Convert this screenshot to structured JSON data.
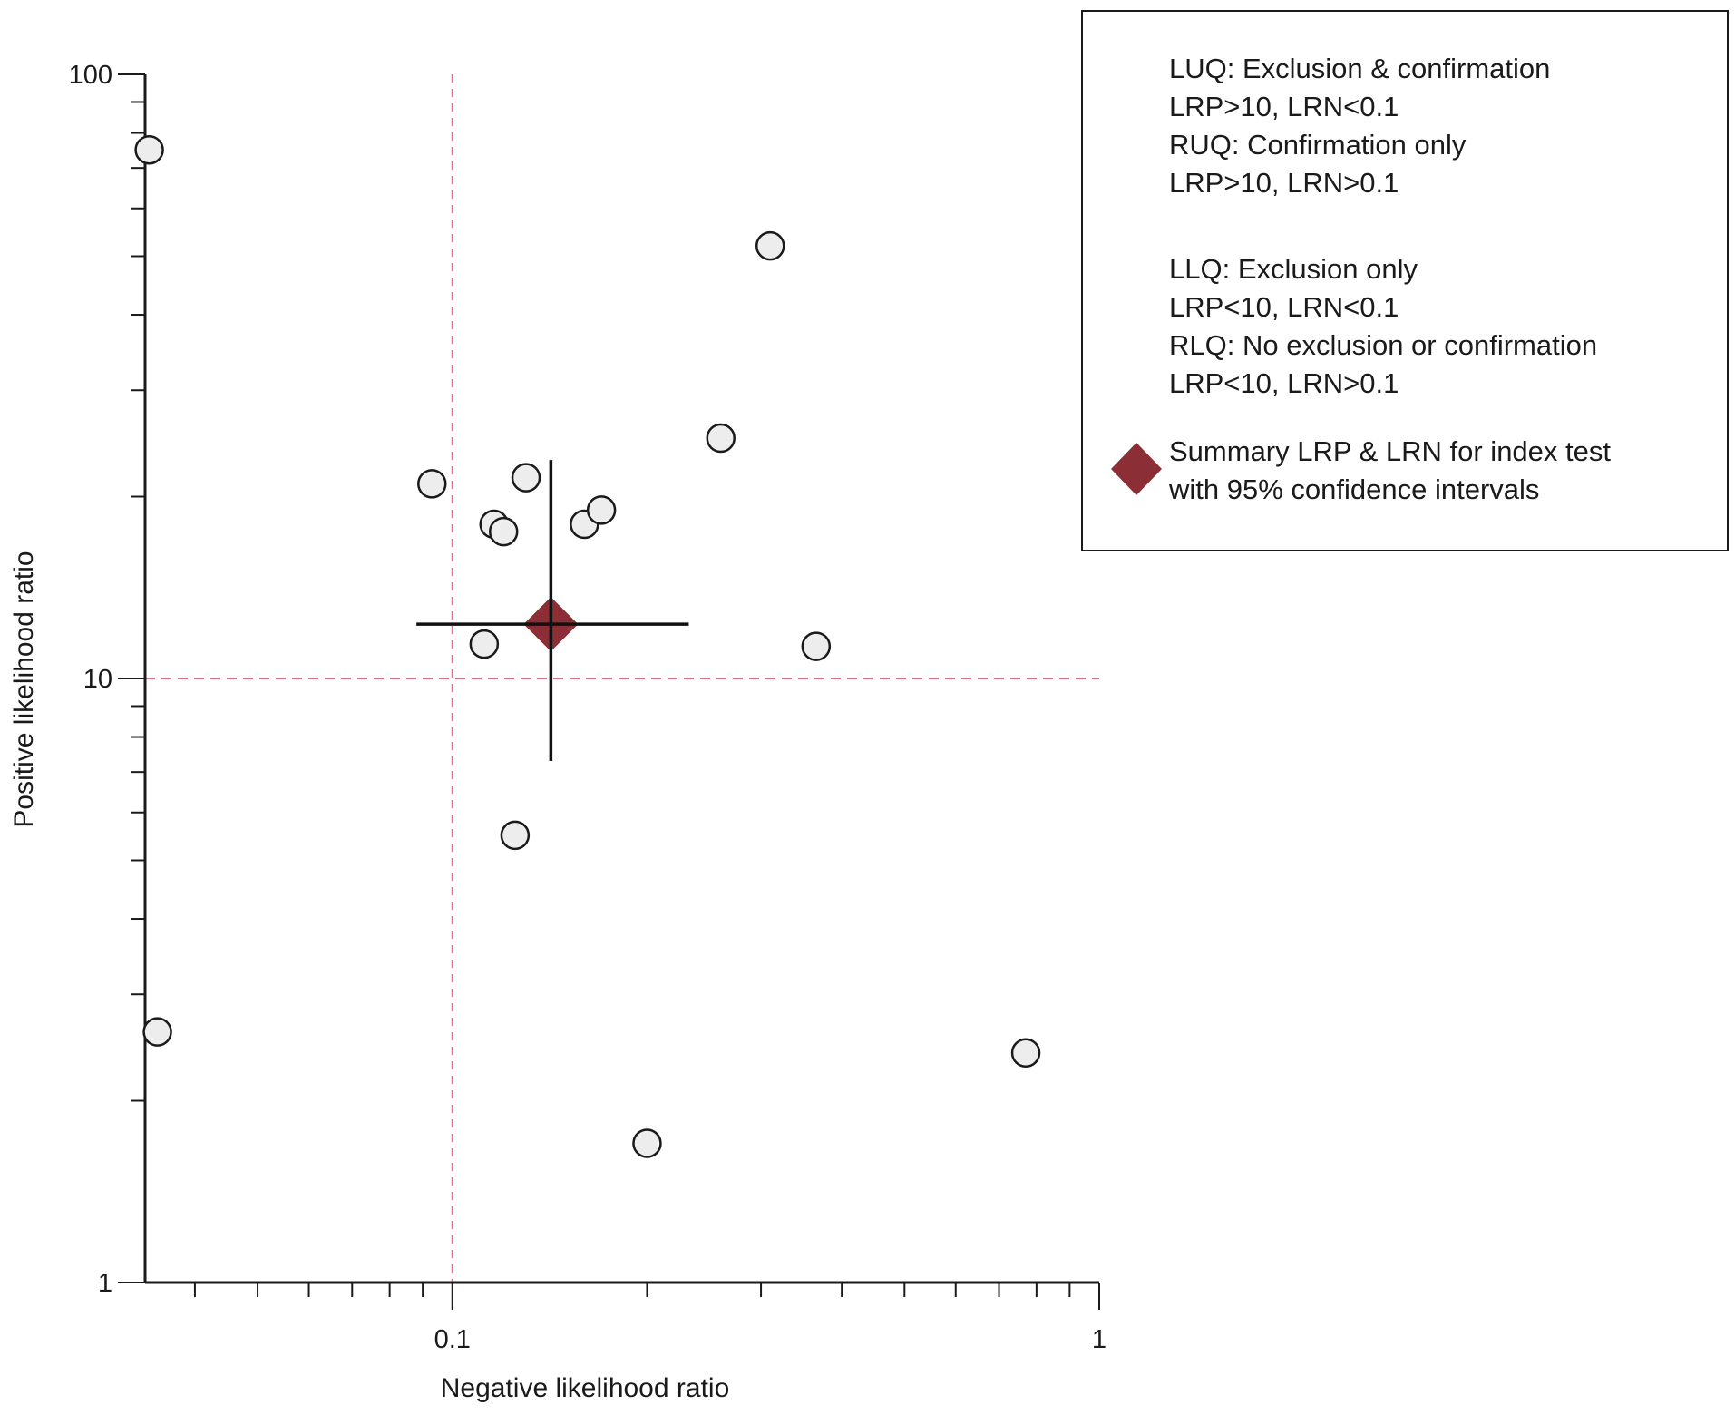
{
  "chart_data": {
    "type": "scatter",
    "title": "",
    "xlabel": "Negative likelihood ratio",
    "ylabel": "Positive likelihood ratio",
    "x_scale": "log",
    "y_scale": "log",
    "xlim": [
      0.0335,
      1
    ],
    "ylim": [
      1,
      100
    ],
    "x_ticks": [
      {
        "value": 0.1,
        "label": "0.1"
      },
      {
        "value": 1,
        "label": "1"
      }
    ],
    "y_ticks": [
      {
        "value": 1,
        "label": "1"
      },
      {
        "value": 10,
        "label": "10"
      },
      {
        "value": 100,
        "label": "100"
      }
    ],
    "grid": false,
    "reference_lines": {
      "x": 0.1,
      "y": 10,
      "style": "dashed",
      "color": "#e0708a"
    },
    "points": [
      {
        "x": 0.034,
        "y": 75
      },
      {
        "x": 0.035,
        "y": 2.6
      },
      {
        "x": 0.093,
        "y": 21
      },
      {
        "x": 0.112,
        "y": 11.4
      },
      {
        "x": 0.116,
        "y": 18
      },
      {
        "x": 0.12,
        "y": 17.5
      },
      {
        "x": 0.125,
        "y": 5.5
      },
      {
        "x": 0.13,
        "y": 21.5
      },
      {
        "x": 0.16,
        "y": 18
      },
      {
        "x": 0.17,
        "y": 19
      },
      {
        "x": 0.2,
        "y": 1.7
      },
      {
        "x": 0.26,
        "y": 25
      },
      {
        "x": 0.31,
        "y": 52
      },
      {
        "x": 0.365,
        "y": 11.3
      },
      {
        "x": 0.77,
        "y": 2.4
      }
    ],
    "summary": {
      "x": 0.142,
      "y": 12.3,
      "x_ci": [
        0.088,
        0.232
      ],
      "y_ci": [
        7.3,
        23
      ],
      "color": "#8b2e36"
    },
    "legend": {
      "position": "top-right",
      "groups": [
        [
          "LUQ: Exclusion & confirmation",
          "LRP>10, LRN<0.1",
          "RUQ: Confirmation only",
          "LRP>10, LRN>0.1"
        ],
        [
          "LLQ: Exclusion only",
          "LRP<10, LRN<0.1",
          "RLQ: No exclusion or confirmation",
          "LRP<10, LRN>0.1"
        ]
      ],
      "summary_entry": [
        "Summary LRP & LRN for index test",
        "with 95% confidence intervals"
      ]
    }
  }
}
